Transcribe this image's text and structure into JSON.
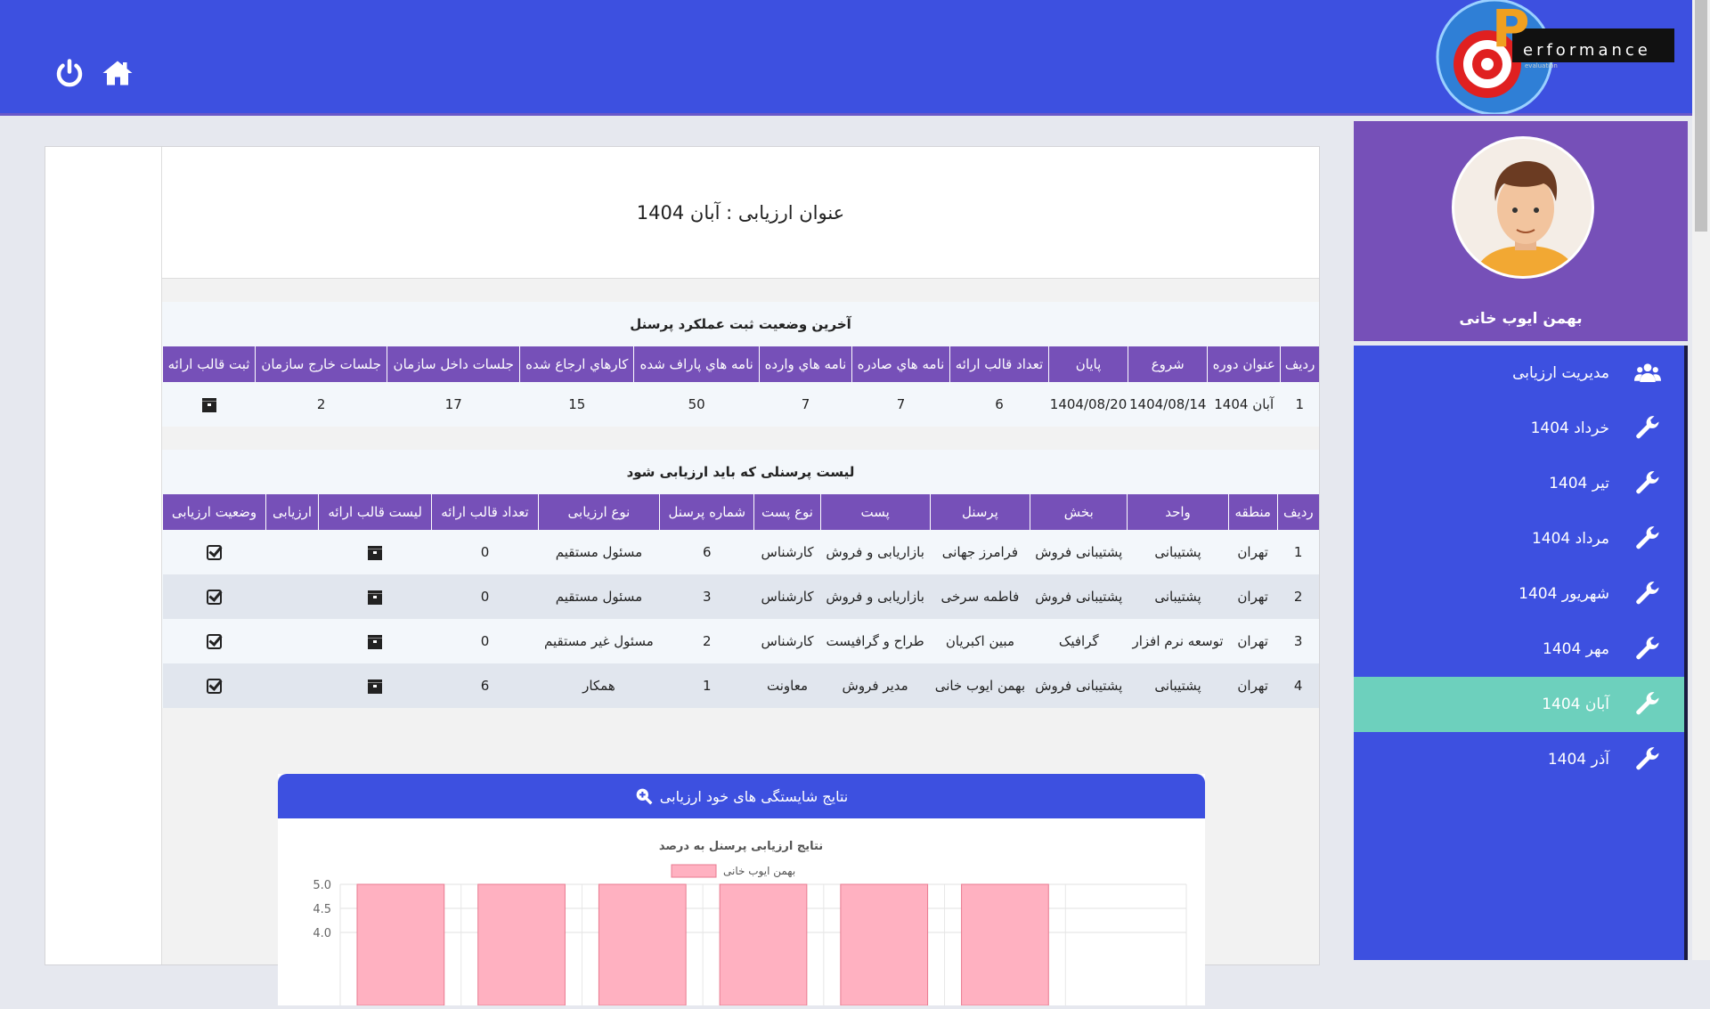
{
  "header": {
    "logo_text": "erformance",
    "logo_letter": "P",
    "logo_sub": "evaluation",
    "power_icon": "power-icon",
    "home_icon": "home-icon",
    "color": "#3d50e0"
  },
  "sidebar": {
    "user_name": "بهمن ایوب خانی",
    "items": [
      {
        "label": "مدیریت ارزیابی",
        "icon": "users-icon",
        "active": false
      },
      {
        "label": "خرداد 1404",
        "icon": "wrench-icon",
        "active": false
      },
      {
        "label": "تیر 1404",
        "icon": "wrench-icon",
        "active": false
      },
      {
        "label": "مرداد 1404",
        "icon": "wrench-icon",
        "active": false
      },
      {
        "label": "شهریور 1404",
        "icon": "wrench-icon",
        "active": false
      },
      {
        "label": "مهر 1404",
        "icon": "wrench-icon",
        "active": false
      },
      {
        "label": "آبان 1404",
        "icon": "wrench-icon",
        "active": true
      },
      {
        "label": "آذر 1404",
        "icon": "wrench-icon",
        "active": false
      }
    ],
    "colors": {
      "profile": "#7650b8",
      "menu": "#3d50e0",
      "active": "#6dd0bd"
    }
  },
  "main": {
    "title": "عنوان ارزیابی : آبان 1404",
    "status_table": {
      "title": "آخرین وضعیت ثبت عملکرد پرسنل",
      "headers": [
        "ردیف",
        "عنوان دوره",
        "شروع",
        "پایان",
        "تعداد قالب ارائه",
        "نامه هاي صادره",
        "نامه هاي وارده",
        "نامه هاي پاراف شده",
        "کارهاي ارجاع شده",
        "جلسات داخل سازمان",
        "جلسات خارج سازمان",
        "ثبت قالب ارائه"
      ],
      "rows": [
        [
          "1",
          "آبان 1404",
          "1404/08/14",
          "1404/08/20",
          "6",
          "7",
          "7",
          "50",
          "15",
          "17",
          "2",
          ""
        ]
      ]
    },
    "personnel_table": {
      "title": "لیست پرسنلی که باید ارزیابی شود",
      "headers": [
        "ردیف",
        "منطقه",
        "واحد",
        "بخش",
        "پرسنل",
        "پست",
        "نوع پست",
        "شماره پرسنل",
        "نوع ارزیابی",
        "تعداد قالب ارائه",
        "لیست قالب ارائه",
        "ارزیابی",
        "وضعیت ارزیابی"
      ],
      "rows": [
        [
          "1",
          "تهران",
          "پشتیبانی",
          "پشتیبانی فروش",
          "فرامرز جهانی",
          "بازاریابی و فروش",
          "کارشناس",
          "6",
          "مسئول مستقیم",
          "0"
        ],
        [
          "2",
          "تهران",
          "پشتیبانی",
          "پشتیبانی فروش",
          "فاطمه سرخی",
          "بازاریابی و فروش",
          "کارشناس",
          "3",
          "مسئول مستقیم",
          "0"
        ],
        [
          "3",
          "تهران",
          "توسعه نرم افزار",
          "گرافیک",
          "مبین اکبریان",
          "طراح و گرافیست",
          "کارشناس",
          "2",
          "مسئول غیر مستقیم",
          "0"
        ],
        [
          "4",
          "تهران",
          "پشتیبانی",
          "پشتیبانی فروش",
          "بهمن ایوب خانی",
          "مدیر فروش",
          "معاونت",
          "1",
          "همکار",
          "6"
        ]
      ]
    },
    "chart_panel": {
      "title": "نتایج شایستگی های خود ارزیابی",
      "icon": "zoom-in-icon"
    }
  },
  "chart_data": {
    "type": "bar",
    "title": "نتایج ارزیابی پرسنل به درصد",
    "series": [
      {
        "name": "بهمن ایوب خانی",
        "values": [
          5,
          5,
          5,
          5,
          5,
          5
        ],
        "color": "#ffb1c1"
      }
    ],
    "y_ticks": [
      "5.0",
      "4.5",
      "4.0"
    ],
    "ylim_visible": [
      4.0,
      5.0
    ],
    "grid": true,
    "legend": "top"
  }
}
